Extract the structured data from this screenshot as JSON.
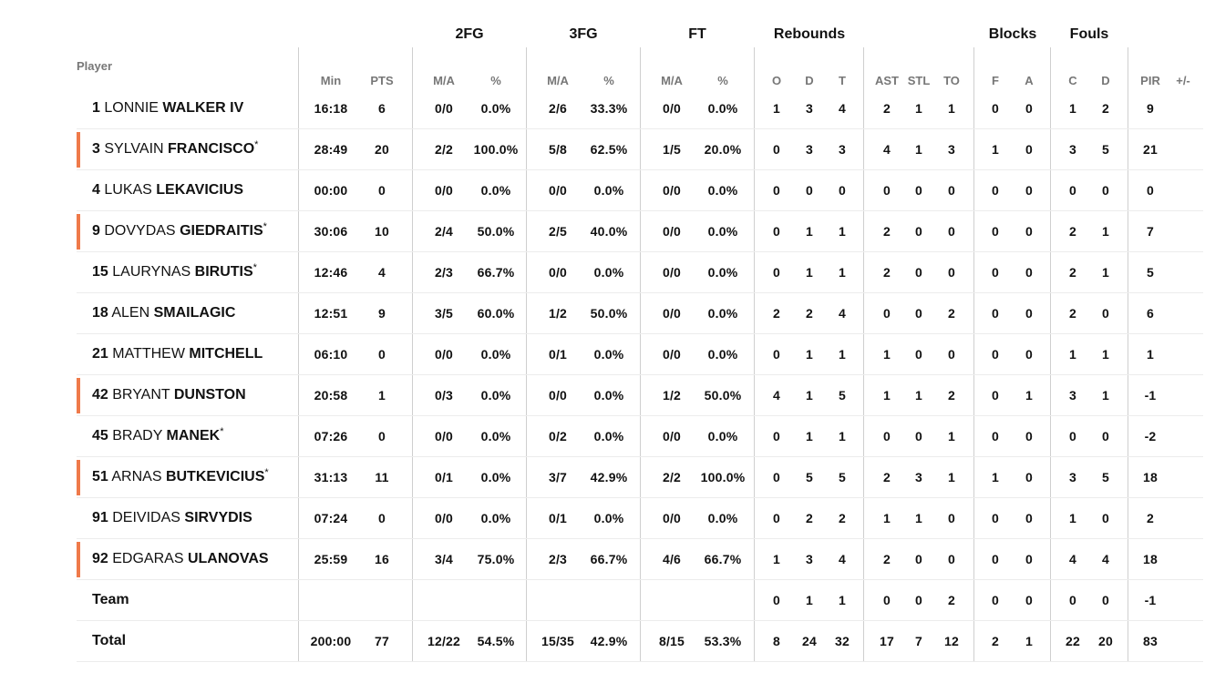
{
  "header": {
    "player_label": "Player",
    "groups": [
      {
        "key": "2fg",
        "label": "2FG"
      },
      {
        "key": "3fg",
        "label": "3FG"
      },
      {
        "key": "ft",
        "label": "FT"
      },
      {
        "key": "rebounds",
        "label": "Rebounds"
      },
      {
        "key": "blocks",
        "label": "Blocks"
      },
      {
        "key": "fouls",
        "label": "Fouls"
      }
    ],
    "columns": [
      "Min",
      "PTS",
      "M/A",
      "%",
      "M/A",
      "%",
      "M/A",
      "%",
      "O",
      "D",
      "T",
      "AST",
      "STL",
      "TO",
      "F",
      "A",
      "C",
      "D",
      "PIR",
      "+/-"
    ]
  },
  "accent_color": "#ef7a4a",
  "players": [
    {
      "num": "1",
      "first": "LONNIE",
      "last": "WALKER IV",
      "star": "",
      "starter": false,
      "stats": [
        "16:18",
        "6",
        "0/0",
        "0.0%",
        "2/6",
        "33.3%",
        "0/0",
        "0.0%",
        "1",
        "3",
        "4",
        "2",
        "1",
        "1",
        "0",
        "0",
        "1",
        "2",
        "9",
        ""
      ]
    },
    {
      "num": "3",
      "first": "SYLVAIN",
      "last": "FRANCISCO",
      "star": "*",
      "starter": true,
      "stats": [
        "28:49",
        "20",
        "2/2",
        "100.0%",
        "5/8",
        "62.5%",
        "1/5",
        "20.0%",
        "0",
        "3",
        "3",
        "4",
        "1",
        "3",
        "1",
        "0",
        "3",
        "5",
        "21",
        ""
      ]
    },
    {
      "num": "4",
      "first": "LUKAS",
      "last": "LEKAVICIUS",
      "star": "",
      "starter": false,
      "stats": [
        "00:00",
        "0",
        "0/0",
        "0.0%",
        "0/0",
        "0.0%",
        "0/0",
        "0.0%",
        "0",
        "0",
        "0",
        "0",
        "0",
        "0",
        "0",
        "0",
        "0",
        "0",
        "0",
        ""
      ]
    },
    {
      "num": "9",
      "first": "DOVYDAS",
      "last": "GIEDRAITIS",
      "star": "*",
      "starter": true,
      "stats": [
        "30:06",
        "10",
        "2/4",
        "50.0%",
        "2/5",
        "40.0%",
        "0/0",
        "0.0%",
        "0",
        "1",
        "1",
        "2",
        "0",
        "0",
        "0",
        "0",
        "2",
        "1",
        "7",
        ""
      ]
    },
    {
      "num": "15",
      "first": "LAURYNAS",
      "last": "BIRUTIS",
      "star": "*",
      "starter": false,
      "stats": [
        "12:46",
        "4",
        "2/3",
        "66.7%",
        "0/0",
        "0.0%",
        "0/0",
        "0.0%",
        "0",
        "1",
        "1",
        "2",
        "0",
        "0",
        "0",
        "0",
        "2",
        "1",
        "5",
        ""
      ]
    },
    {
      "num": "18",
      "first": "ALEN",
      "last": "SMAILAGIC",
      "star": "",
      "starter": false,
      "stats": [
        "12:51",
        "9",
        "3/5",
        "60.0%",
        "1/2",
        "50.0%",
        "0/0",
        "0.0%",
        "2",
        "2",
        "4",
        "0",
        "0",
        "2",
        "0",
        "0",
        "2",
        "0",
        "6",
        ""
      ]
    },
    {
      "num": "21",
      "first": "MATTHEW",
      "last": "MITCHELL",
      "star": "",
      "starter": false,
      "stats": [
        "06:10",
        "0",
        "0/0",
        "0.0%",
        "0/1",
        "0.0%",
        "0/0",
        "0.0%",
        "0",
        "1",
        "1",
        "1",
        "0",
        "0",
        "0",
        "0",
        "1",
        "1",
        "1",
        ""
      ]
    },
    {
      "num": "42",
      "first": "BRYANT",
      "last": "DUNSTON",
      "star": "",
      "starter": true,
      "stats": [
        "20:58",
        "1",
        "0/3",
        "0.0%",
        "0/0",
        "0.0%",
        "1/2",
        "50.0%",
        "4",
        "1",
        "5",
        "1",
        "1",
        "2",
        "0",
        "1",
        "3",
        "1",
        "-1",
        ""
      ]
    },
    {
      "num": "45",
      "first": "BRADY",
      "last": "MANEK",
      "star": "*",
      "starter": false,
      "stats": [
        "07:26",
        "0",
        "0/0",
        "0.0%",
        "0/2",
        "0.0%",
        "0/0",
        "0.0%",
        "0",
        "1",
        "1",
        "0",
        "0",
        "1",
        "0",
        "0",
        "0",
        "0",
        "-2",
        ""
      ]
    },
    {
      "num": "51",
      "first": "ARNAS",
      "last": "BUTKEVICIUS",
      "star": "*",
      "starter": true,
      "stats": [
        "31:13",
        "11",
        "0/1",
        "0.0%",
        "3/7",
        "42.9%",
        "2/2",
        "100.0%",
        "0",
        "5",
        "5",
        "2",
        "3",
        "1",
        "1",
        "0",
        "3",
        "5",
        "18",
        ""
      ]
    },
    {
      "num": "91",
      "first": "DEIVIDAS",
      "last": "SIRVYDIS",
      "star": "",
      "starter": false,
      "stats": [
        "07:24",
        "0",
        "0/0",
        "0.0%",
        "0/1",
        "0.0%",
        "0/0",
        "0.0%",
        "0",
        "2",
        "2",
        "1",
        "1",
        "0",
        "0",
        "0",
        "1",
        "0",
        "2",
        ""
      ]
    },
    {
      "num": "92",
      "first": "EDGARAS",
      "last": "ULANOVAS",
      "star": "",
      "starter": true,
      "stats": [
        "25:59",
        "16",
        "3/4",
        "75.0%",
        "2/3",
        "66.7%",
        "4/6",
        "66.7%",
        "1",
        "3",
        "4",
        "2",
        "0",
        "0",
        "0",
        "0",
        "4",
        "4",
        "18",
        ""
      ]
    }
  ],
  "team_row": {
    "label": "Team",
    "stats": [
      "",
      "",
      "",
      "",
      "",
      "",
      "",
      "",
      "0",
      "1",
      "1",
      "0",
      "0",
      "2",
      "0",
      "0",
      "0",
      "0",
      "-1",
      ""
    ]
  },
  "total_row": {
    "label": "Total",
    "stats": [
      "200:00",
      "77",
      "12/22",
      "54.5%",
      "15/35",
      "42.9%",
      "8/15",
      "53.3%",
      "8",
      "24",
      "32",
      "17",
      "7",
      "12",
      "2",
      "1",
      "22",
      "20",
      "83",
      ""
    ]
  }
}
